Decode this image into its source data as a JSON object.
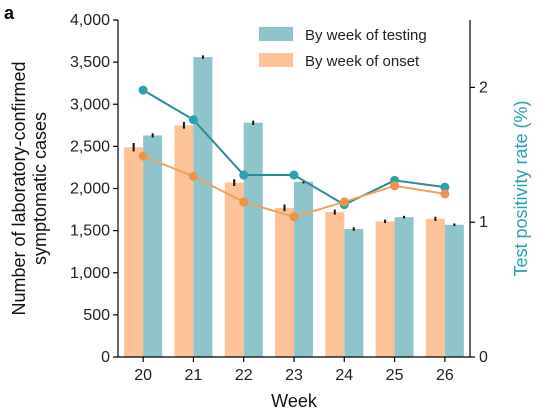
{
  "panel_label": "a",
  "chart_data": {
    "type": "bar",
    "title": "",
    "xlabel": "Week",
    "ylabel_lines": [
      "Number of laboratory-confirmed",
      "symptomatic cases"
    ],
    "y2label": "Test positivity rate (%)",
    "categories": [
      "20",
      "21",
      "22",
      "23",
      "24",
      "25",
      "26"
    ],
    "ylim": [
      0,
      4000
    ],
    "yticks": [
      0,
      500,
      1000,
      1500,
      2000,
      2500,
      3000,
      3500,
      4000
    ],
    "ytick_labels": [
      "0",
      "500",
      "1,000",
      "1,500",
      "2,000",
      "2,500",
      "3,000",
      "3,500",
      "4,000"
    ],
    "y2lim": [
      0,
      2.5
    ],
    "y2ticks": [
      0,
      1,
      2
    ],
    "y2tick_labels": [
      "0",
      "1",
      "2"
    ],
    "grid": false,
    "legend_position": "top-right",
    "bar_series": [
      {
        "name": "By week of onset",
        "color": "#fdc396",
        "values": [
          2490,
          2750,
          2070,
          1770,
          1720,
          1610,
          1640
        ],
        "errors": [
          50,
          40,
          40,
          40,
          30,
          20,
          25
        ]
      },
      {
        "name": "By week of testing",
        "color": "#8ec5cc",
        "values": [
          2630,
          3560,
          2780,
          2080,
          1520,
          1660,
          1570
        ],
        "errors": [
          25,
          20,
          25,
          20,
          20,
          15,
          15
        ]
      }
    ],
    "line_series": [
      {
        "axis": "y2",
        "color": "#2a8c97",
        "marker_color": "#2aa1ad",
        "values": [
          1.98,
          1.76,
          1.35,
          1.35,
          1.13,
          1.31,
          1.26
        ]
      },
      {
        "axis": "y2",
        "color": "#f0a25e",
        "marker_color": "#ef9349",
        "values": [
          1.49,
          1.34,
          1.15,
          1.04,
          1.15,
          1.27,
          1.21
        ]
      }
    ],
    "legend_order": [
      "By week of testing",
      "By week of onset"
    ]
  }
}
